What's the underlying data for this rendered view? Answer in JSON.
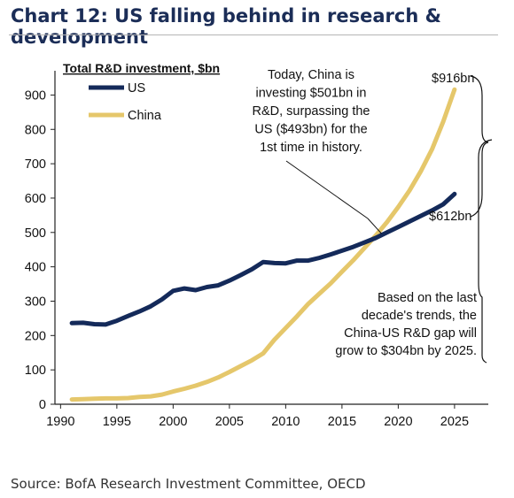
{
  "title": "Chart 12: US falling behind in research & development",
  "source": "Source: BofA Research Investment Committee, OECD",
  "chart_data": {
    "type": "line",
    "title": "Total R&D investment, $bn",
    "xlabel": "",
    "ylabel": "",
    "xlim": [
      1989.5,
      2028
    ],
    "ylim": [
      0,
      950
    ],
    "xticks": [
      1990,
      1995,
      2000,
      2005,
      2010,
      2015,
      2020,
      2025
    ],
    "yticks": [
      0,
      100,
      200,
      300,
      400,
      500,
      600,
      700,
      800,
      900
    ],
    "grid": false,
    "legend": "top-left",
    "series": [
      {
        "name": "US",
        "color": "#142a5a",
        "x": [
          1991,
          1992,
          1993,
          1994,
          1995,
          1996,
          1997,
          1998,
          1999,
          2000,
          2001,
          2002,
          2003,
          2004,
          2005,
          2006,
          2007,
          2008,
          2009,
          2010,
          2011,
          2012,
          2013,
          2014,
          2015,
          2016,
          2017,
          2018,
          2019,
          2020,
          2021,
          2022,
          2023,
          2024,
          2025
        ],
        "values": [
          236,
          237,
          233,
          232,
          243,
          257,
          270,
          285,
          305,
          330,
          337,
          332,
          341,
          346,
          360,
          376,
          393,
          414,
          411,
          410,
          418,
          418,
          426,
          436,
          447,
          458,
          471,
          484,
          500,
          516,
          532,
          548,
          564,
          582,
          612
        ]
      },
      {
        "name": "China",
        "color": "#e5c76b",
        "x": [
          1991,
          1992,
          1993,
          1994,
          1995,
          1996,
          1997,
          1998,
          1999,
          2000,
          2001,
          2002,
          2003,
          2004,
          2005,
          2006,
          2007,
          2008,
          2009,
          2010,
          2011,
          2012,
          2013,
          2014,
          2015,
          2016,
          2017,
          2018,
          2019,
          2020,
          2021,
          2022,
          2023,
          2024,
          2025
        ],
        "values": [
          14,
          15,
          16,
          17,
          17,
          18,
          21,
          23,
          28,
          37,
          45,
          54,
          65,
          78,
          94,
          111,
          128,
          148,
          188,
          222,
          256,
          292,
          322,
          352,
          386,
          419,
          455,
          491,
          530,
          574,
          622,
          678,
          742,
          823,
          916
        ]
      }
    ],
    "annotations": [
      {
        "text": [
          "Today, China is",
          "investing $501bn in",
          "R&D, surpassing the",
          "US ($493bn) for the",
          "1st time in history."
        ]
      },
      {
        "text": [
          "$916bn"
        ]
      },
      {
        "text": [
          "$612bn"
        ]
      },
      {
        "text": [
          "Based on the last",
          "decade's trends, the",
          "China-US R&D gap will",
          "grow to $304bn by 2025."
        ]
      }
    ]
  }
}
